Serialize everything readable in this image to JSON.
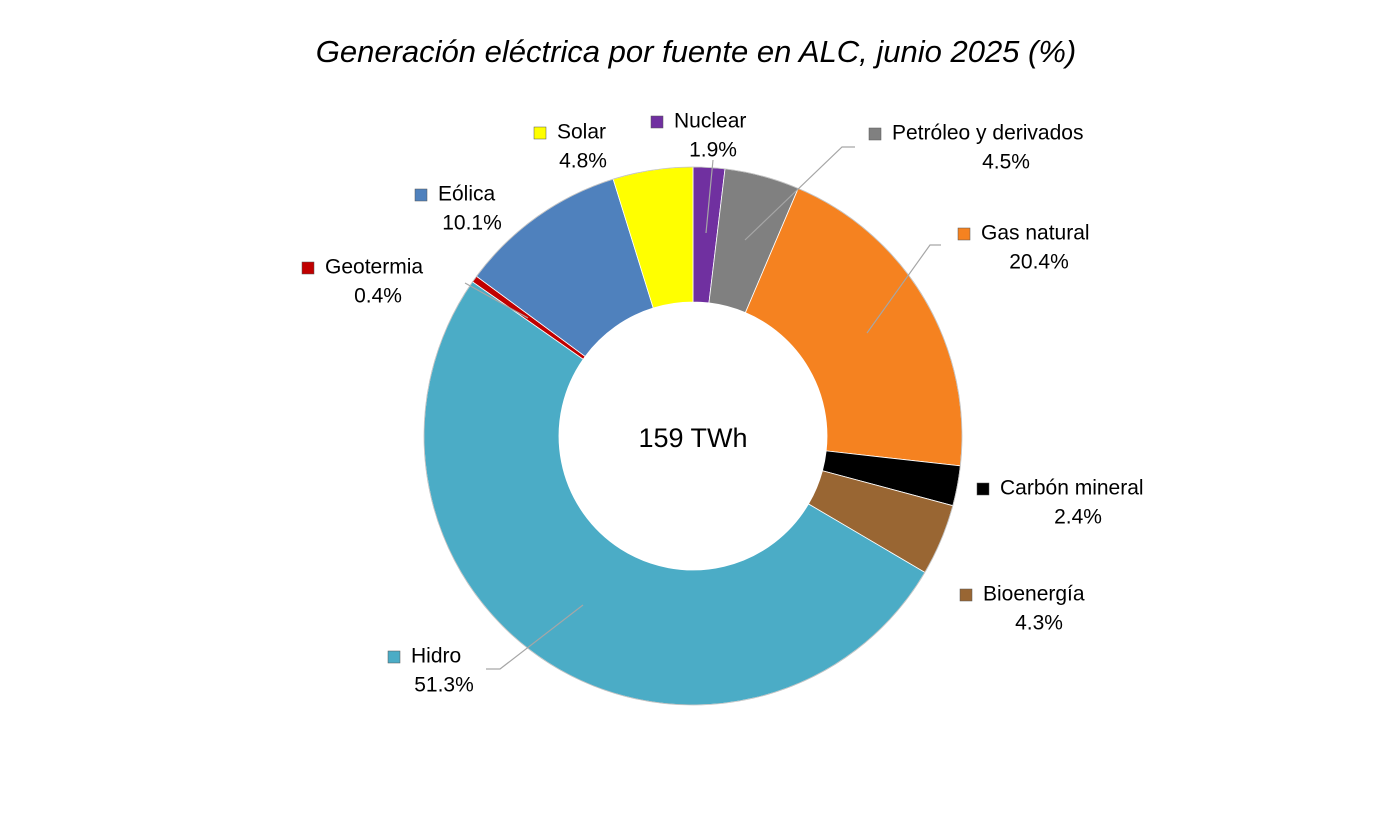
{
  "chart_data": {
    "type": "pie",
    "title": "Generación eléctrica por fuente en ALC, junio 2025  (%)",
    "center_label": "159 TWh",
    "slices": [
      {
        "name": "Nuclear",
        "value": 1.9,
        "label": "1.9%",
        "color": "#7030A0"
      },
      {
        "name": "Petróleo y derivados",
        "value": 4.5,
        "label": "4.5%",
        "color": "#808080"
      },
      {
        "name": "Gas natural",
        "value": 20.4,
        "label": "20.4%",
        "color": "#F58220"
      },
      {
        "name": "Carbón mineral",
        "value": 2.4,
        "label": "2.4%",
        "color": "#000000"
      },
      {
        "name": "Bioenergía",
        "value": 4.3,
        "label": "4.3%",
        "color": "#996633"
      },
      {
        "name": "Hidro",
        "value": 51.3,
        "label": "51.3%",
        "color": "#4BACC6"
      },
      {
        "name": "Geotermia",
        "value": 0.4,
        "label": "0.4%",
        "color": "#C00000"
      },
      {
        "name": "Eólica",
        "value": 10.1,
        "label": "10.1%",
        "color": "#4F81BD"
      },
      {
        "name": "Solar",
        "value": 4.8,
        "label": "4.8%",
        "color": "#FFFF00"
      }
    ]
  }
}
